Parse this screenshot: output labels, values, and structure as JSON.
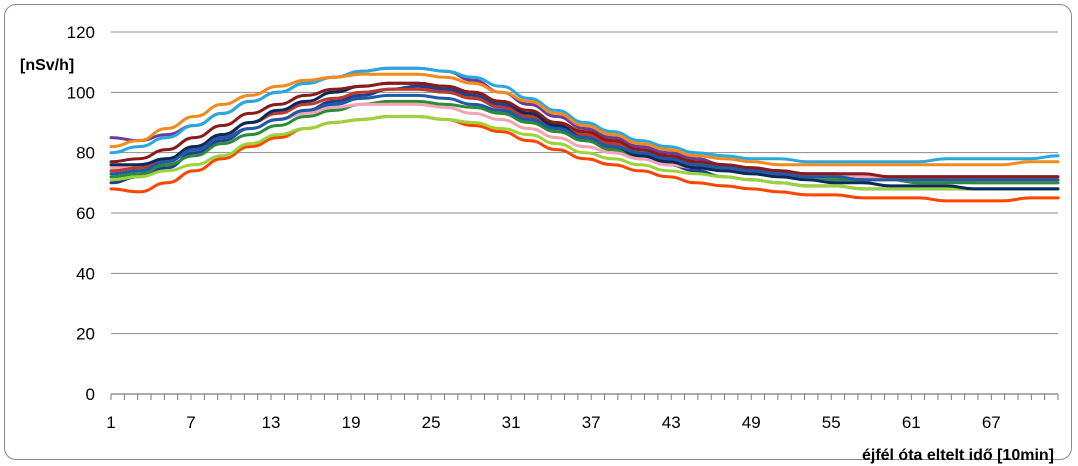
{
  "chart_data": {
    "type": "line",
    "ylabel": "[nSv/h]",
    "xlabel": "éjfél óta eltelt idő [10min]",
    "ylim": [
      0,
      120
    ],
    "yticks": [
      0,
      20,
      40,
      60,
      80,
      100,
      120
    ],
    "xlim": [
      1,
      72
    ],
    "xticks": [
      1,
      7,
      13,
      19,
      25,
      31,
      37,
      43,
      49,
      55,
      61,
      67
    ],
    "grid": "horizontal",
    "legend": "none",
    "series": [
      {
        "color": "#1f3f8f",
        "values": [
          70,
          72,
          75,
          80,
          84,
          88,
          91,
          94,
          97,
          99,
          101,
          102,
          101,
          99,
          96,
          92,
          88,
          84,
          81,
          78,
          76,
          74,
          72,
          71,
          70,
          69,
          69,
          68,
          68,
          68,
          68,
          68,
          68,
          68,
          68
        ]
      },
      {
        "color": "#c0392b",
        "values": [
          74,
          75,
          78,
          82,
          86,
          90,
          93,
          96,
          98,
          100,
          101,
          101,
          100,
          98,
          95,
          92,
          89,
          86,
          83,
          80,
          78,
          76,
          75,
          74,
          73,
          72,
          72,
          71,
          71,
          71,
          71,
          70,
          70,
          70,
          70
        ]
      },
      {
        "color": "#2e8b3a",
        "values": [
          72,
          73,
          76,
          79,
          83,
          86,
          89,
          92,
          94,
          96,
          97,
          97,
          96,
          95,
          93,
          90,
          87,
          84,
          81,
          79,
          77,
          75,
          74,
          73,
          72,
          72,
          71,
          71,
          71,
          70,
          70,
          70,
          70,
          70,
          70
        ]
      },
      {
        "color": "#6a3d9a",
        "values": [
          85,
          84,
          86,
          89,
          93,
          97,
          100,
          103,
          105,
          107,
          108,
          108,
          107,
          104,
          100,
          96,
          92,
          88,
          85,
          82,
          80,
          78,
          76,
          75,
          74,
          73,
          73,
          72,
          72,
          72,
          72,
          72,
          72,
          72,
          72
        ]
      },
      {
        "color": "#29a8e0",
        "values": [
          80,
          82,
          85,
          89,
          93,
          97,
          100,
          103,
          105,
          107,
          108,
          108,
          107,
          105,
          102,
          98,
          94,
          90,
          87,
          84,
          82,
          80,
          79,
          78,
          78,
          77,
          77,
          77,
          77,
          77,
          78,
          78,
          78,
          78,
          79
        ]
      },
      {
        "color": "#f28a1c",
        "values": [
          82,
          84,
          88,
          92,
          96,
          99,
          102,
          104,
          105,
          106,
          106,
          106,
          105,
          103,
          100,
          97,
          93,
          89,
          86,
          83,
          81,
          79,
          78,
          77,
          76,
          76,
          76,
          76,
          76,
          76,
          76,
          76,
          76,
          77,
          77
        ]
      },
      {
        "color": "#ff4500",
        "values": [
          68,
          67,
          70,
          74,
          78,
          82,
          85,
          88,
          90,
          91,
          92,
          92,
          91,
          89,
          87,
          84,
          81,
          78,
          76,
          74,
          72,
          70,
          69,
          68,
          67,
          66,
          66,
          65,
          65,
          65,
          64,
          64,
          64,
          65,
          65
        ]
      },
      {
        "color": "#9bd43a",
        "values": [
          71,
          72,
          74,
          76,
          79,
          83,
          86,
          88,
          90,
          91,
          92,
          92,
          91,
          90,
          88,
          86,
          83,
          80,
          78,
          76,
          74,
          73,
          72,
          71,
          70,
          69,
          69,
          68,
          68,
          68,
          68,
          68,
          68,
          68,
          68
        ]
      },
      {
        "color": "#f4a3b4",
        "values": [
          75,
          76,
          78,
          81,
          85,
          88,
          91,
          93,
          95,
          96,
          96,
          96,
          95,
          93,
          91,
          88,
          85,
          82,
          80,
          78,
          76,
          75,
          74,
          73,
          73,
          72,
          72,
          72,
          71,
          71,
          71,
          71,
          71,
          71,
          71
        ]
      },
      {
        "color": "#0b2a5c",
        "values": [
          76,
          76,
          78,
          82,
          86,
          90,
          94,
          97,
          100,
          102,
          103,
          103,
          102,
          100,
          97,
          93,
          89,
          85,
          82,
          79,
          77,
          75,
          74,
          73,
          72,
          71,
          70,
          70,
          69,
          69,
          69,
          68,
          68,
          68,
          68
        ]
      },
      {
        "color": "#1e5aa8",
        "values": [
          73,
          74,
          77,
          81,
          85,
          88,
          91,
          94,
          96,
          98,
          99,
          99,
          98,
          96,
          94,
          91,
          88,
          85,
          82,
          80,
          78,
          76,
          75,
          74,
          73,
          72,
          72,
          71,
          71,
          71,
          71,
          71,
          71,
          71,
          71
        ]
      },
      {
        "color": "#8b1a1a",
        "values": [
          77,
          78,
          81,
          85,
          89,
          93,
          96,
          99,
          101,
          102,
          103,
          103,
          102,
          100,
          97,
          94,
          90,
          87,
          84,
          81,
          79,
          77,
          76,
          75,
          74,
          73,
          73,
          73,
          72,
          72,
          72,
          72,
          72,
          72,
          72
        ]
      }
    ]
  }
}
